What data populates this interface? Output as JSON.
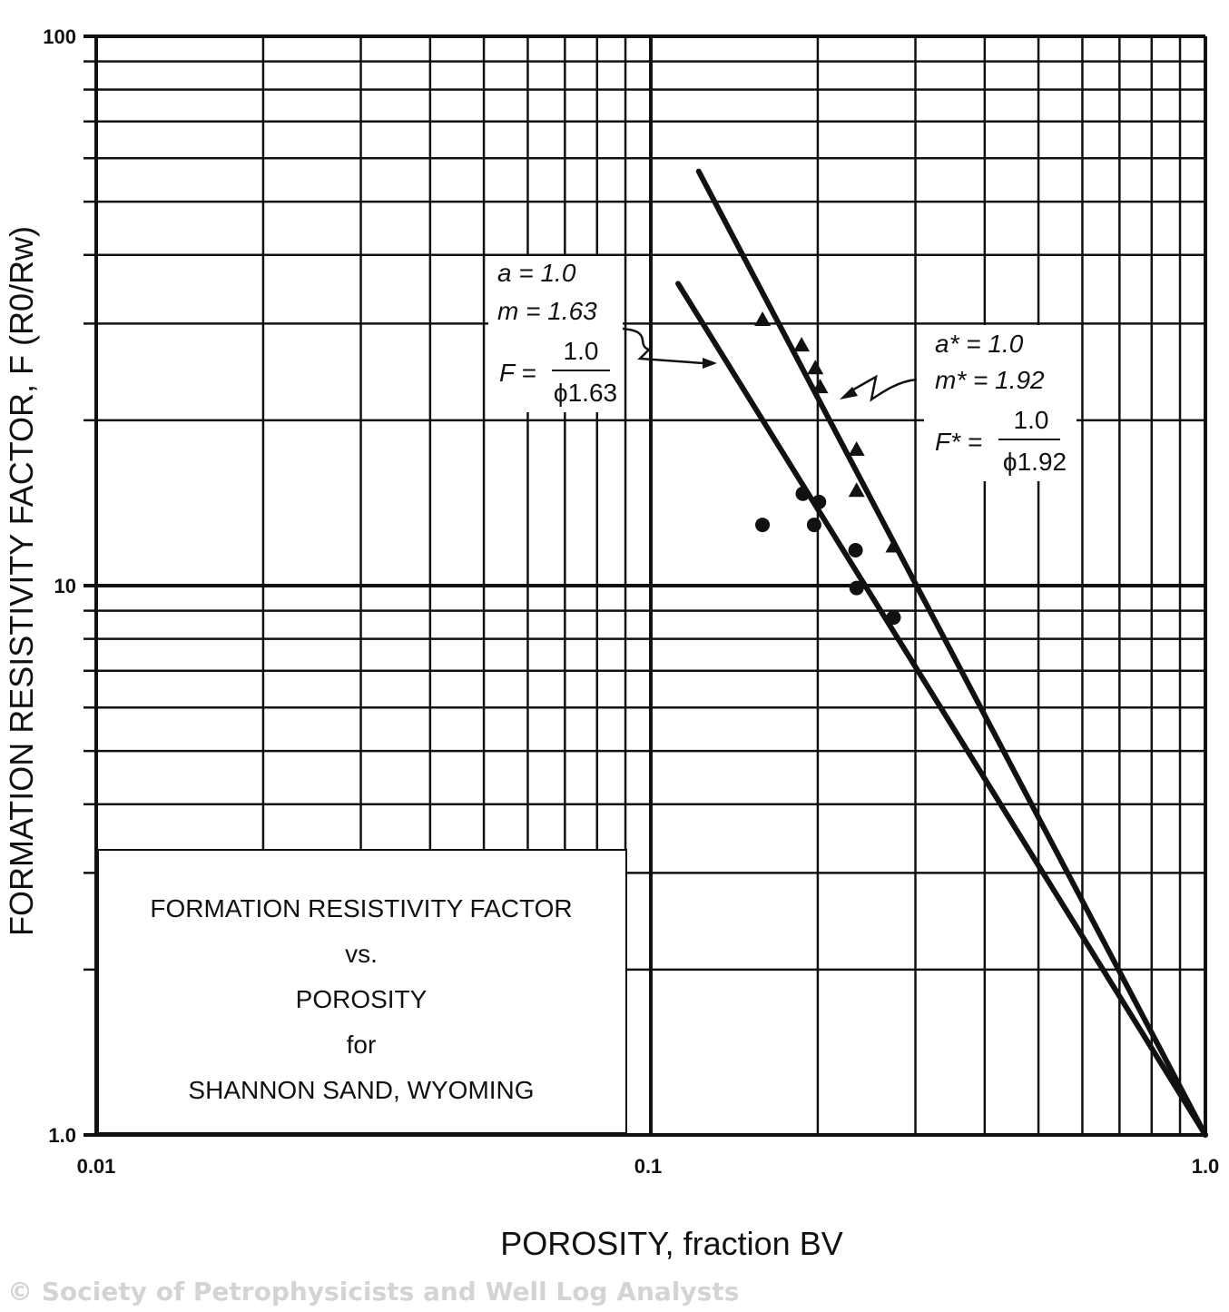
{
  "chart_data": {
    "type": "scatter",
    "title_lines": [
      "FORMATION RESISTIVITY FACTOR",
      "vs.",
      "POROSITY",
      "for",
      "SHANNON SAND, WYOMING"
    ],
    "xlabel": "POROSITY, fraction BV",
    "ylabel": "FORMATION RESISTIVITY FACTOR, F (R0/Rw)",
    "x_scale": "log",
    "y_scale": "log",
    "xlim": [
      0.01,
      1.0
    ],
    "ylim": [
      1.0,
      100
    ],
    "x_ticks": [
      "0.01",
      "0.1",
      "1.0"
    ],
    "y_ticks": [
      "1.0",
      "10",
      "100"
    ],
    "grid": true,
    "series": [
      {
        "marker": "circle",
        "x": [
          0.159,
          0.188,
          0.201,
          0.197,
          0.234,
          0.235,
          0.274
        ],
        "y": [
          12.9,
          14.7,
          14.2,
          12.9,
          11.6,
          9.9,
          8.75
        ]
      },
      {
        "marker": "triangle",
        "x": [
          0.159,
          0.187,
          0.198,
          0.202,
          0.235,
          0.235,
          0.274
        ],
        "y": [
          30.5,
          27.4,
          24.9,
          23.0,
          17.7,
          14.9,
          11.8
        ]
      }
    ],
    "fit_lines": [
      {
        "a": 1.0,
        "m": 1.63,
        "x_range": [
          0.112,
          1.0
        ],
        "label": {
          "a": "a  = 1.0",
          "m": "m = 1.63",
          "F_left": "F =",
          "num": "1.0",
          "den": "ϕ1.63"
        }
      },
      {
        "a": 1.0,
        "m": 1.92,
        "x_range": [
          0.122,
          1.0
        ],
        "label": {
          "a": "a*  = 1.0",
          "m": "m* = 1.92",
          "F_left": "F* =",
          "num": "1.0",
          "den": "ϕ1.92"
        }
      }
    ]
  },
  "watermark": "© Society of Petrophysicists and Well Log Analysts"
}
